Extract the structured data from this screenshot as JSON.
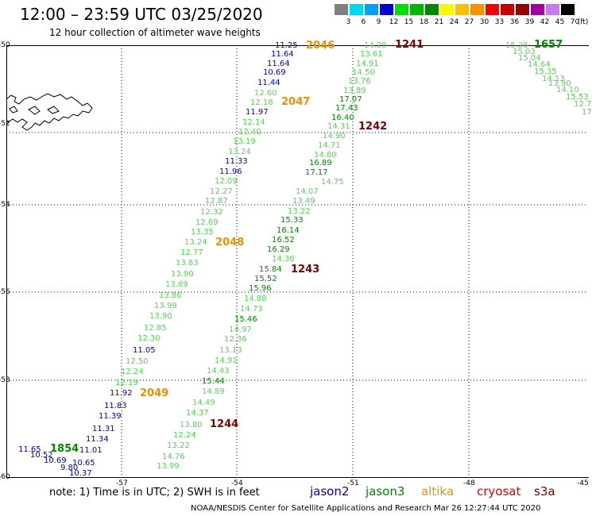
{
  "header": {
    "title": "12:00 – 23:59 UTC 03/25/2020",
    "subtitle": "12 hour collection of altimeter wave heights"
  },
  "scale": {
    "labels": [
      "3",
      "6",
      "9",
      "12",
      "15",
      "18",
      "21",
      "24",
      "27",
      "30",
      "33",
      "36",
      "39",
      "42",
      "45",
      "70",
      "(ft)"
    ],
    "colors": [
      "#808080",
      "#00d8f0",
      "#00a0ff",
      "#0000d8",
      "#00e000",
      "#00b800",
      "#008800",
      "#f8f800",
      "#f8c000",
      "#f89000",
      "#f80000",
      "#c80000",
      "#980000",
      "#a000a0",
      "#c878f0",
      "#000000"
    ]
  },
  "axes": {
    "y_labels": [
      "-50",
      "-52",
      "-54",
      "-56",
      "-58",
      "-60"
    ],
    "x_labels": [
      "-57",
      "-54",
      "-51",
      "-48",
      "-45"
    ]
  },
  "colors": {
    "jason2": "#0000c8",
    "jason3": "#008800",
    "altika": "#f09000",
    "cryosat": "#c00000",
    "s3a": "#800000",
    "light_green": "#50d850"
  },
  "labels": {
    "blue": [
      "11.25",
      "11.64",
      "11.64",
      "10.69",
      "11.44",
      "11.97",
      "11.33",
      "11.96",
      "11.05",
      "11.92",
      "11.83",
      "11.39",
      "11.31",
      "11.34",
      "11.65",
      "11.01",
      "10.52",
      "10.69",
      "9.80",
      "10.65",
      "10.37"
    ],
    "track1_light": [
      "12.60",
      "12.18",
      "12.14",
      "12.40",
      "13.19",
      "13.24",
      "12.09",
      "12.27",
      "12.87",
      "12.32",
      "12.69",
      "13.35",
      "13.24",
      "12.77",
      "13.83",
      "13.90",
      "13.69",
      "13.86",
      "13.99",
      "13.90",
      "12.85",
      "12.30",
      "12.50",
      "12.24",
      "12.19"
    ],
    "track2_light": [
      "14.29",
      "13.61",
      "14.91",
      "14.50",
      "13.76",
      "13.89",
      "14.31",
      "14.90",
      "14.71",
      "14.80",
      "14.75",
      "14.07",
      "13.49",
      "13.22",
      "14.36",
      "14.88",
      "14.73",
      "14.97",
      "12.36",
      "13.13",
      "14.91",
      "14.43",
      "14.89",
      "14.49",
      "14.37",
      "13.80",
      "12.24",
      "13.22",
      "14.76",
      "13.99"
    ],
    "track2_dark": [
      "17.07",
      "17.43",
      "16.40",
      "16.89",
      "17.17",
      "15.33",
      "16.14",
      "16.52",
      "16.29",
      "15.84",
      "15.52",
      "15.96",
      "15.46",
      "15.44"
    ],
    "track3_light": [
      "15.28",
      "15.03",
      "15.04",
      "14.64",
      "15.35",
      "14.13",
      "13.90",
      "14.10",
      "15.53",
      "12.7",
      "17"
    ],
    "passes": {
      "altika": [
        "2046",
        "2047",
        "2048",
        "2049"
      ],
      "s3a": [
        "1241",
        "1242",
        "1243",
        "1244"
      ],
      "jason3": [
        "1657",
        "1854"
      ]
    }
  },
  "footer": {
    "note": "note:  1) Time is in UTC;  2) SWH is in feet",
    "legend": [
      "jason2",
      "jason3",
      "altika",
      "cryosat",
      "s3a"
    ],
    "credit": "NOAA/NESDIS Center for Satellite Applications and Research     Mar 26 12:27:44 UTC 2020"
  }
}
